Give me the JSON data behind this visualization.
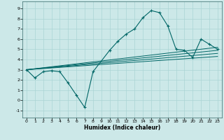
{
  "title": "",
  "xlabel": "Humidex (Indice chaleur)",
  "background_color": "#cce8e8",
  "grid_color": "#aad4d4",
  "line_color": "#006666",
  "xlim": [
    -0.5,
    23.5
  ],
  "ylim": [
    -1.7,
    9.7
  ],
  "xticks": [
    0,
    1,
    2,
    3,
    4,
    5,
    6,
    7,
    8,
    9,
    10,
    11,
    12,
    13,
    14,
    15,
    16,
    17,
    18,
    19,
    20,
    21,
    22,
    23
  ],
  "yticks": [
    -1,
    0,
    1,
    2,
    3,
    4,
    5,
    6,
    7,
    8,
    9
  ],
  "series1_x": [
    0,
    1,
    2,
    3,
    4,
    5,
    6,
    7,
    8,
    10,
    11,
    12,
    13,
    14,
    15,
    16,
    17,
    18,
    19,
    20,
    21,
    22,
    23
  ],
  "series1_y": [
    3.0,
    2.2,
    2.8,
    2.9,
    2.8,
    1.7,
    0.5,
    -0.7,
    2.8,
    4.9,
    5.8,
    6.5,
    7.0,
    8.1,
    8.8,
    8.6,
    7.3,
    5.0,
    4.9,
    4.2,
    6.0,
    5.5,
    5.0
  ],
  "ref_lines": [
    {
      "x": [
        0,
        23
      ],
      "y": [
        3.0,
        5.2
      ]
    },
    {
      "x": [
        0,
        23
      ],
      "y": [
        3.0,
        4.9
      ]
    },
    {
      "x": [
        0,
        23
      ],
      "y": [
        3.0,
        4.6
      ]
    },
    {
      "x": [
        0,
        23
      ],
      "y": [
        3.0,
        4.3
      ]
    }
  ]
}
